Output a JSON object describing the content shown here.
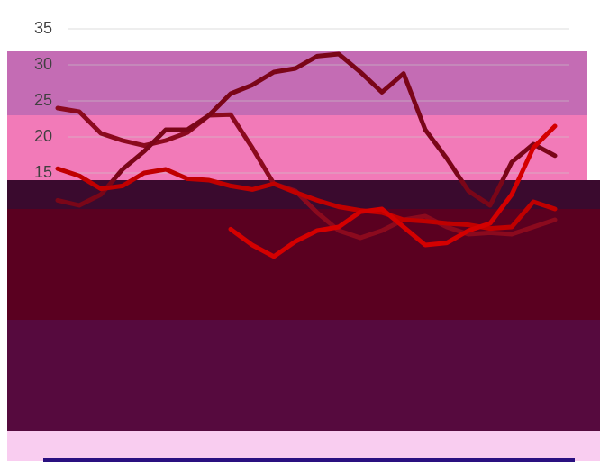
{
  "chart_data": {
    "type": "line",
    "x": [
      0,
      1,
      2,
      3,
      4,
      5,
      6,
      7,
      8,
      9,
      10,
      11,
      12,
      13,
      14,
      15,
      16,
      17,
      18,
      19,
      20,
      21,
      22,
      23
    ],
    "xlim": [
      0,
      23
    ],
    "ylim": [
      0,
      35
    ],
    "yticks": [
      15,
      20,
      25,
      30,
      35
    ],
    "grid": true,
    "series": [
      {
        "color": "#8b0a1e",
        "values": [
          24,
          23.5,
          20.5,
          19.5,
          18.8,
          19.5,
          20.6,
          23,
          23.1,
          18.5,
          13.5,
          12.5,
          9.5,
          7,
          6,
          7,
          8.5,
          9,
          7.5,
          6.5,
          6.7,
          6.5,
          7.5,
          8.5
        ]
      },
      {
        "color": "#7a0618",
        "values": [
          11.2,
          10.5,
          12,
          15.5,
          18,
          21,
          21,
          23,
          26,
          27.2,
          29,
          29.5,
          31.2,
          31.5,
          29,
          26.2,
          28.8,
          21,
          17,
          12.5,
          10.5,
          16.5,
          19,
          17.4
        ]
      },
      {
        "color": "#c00000",
        "values": [
          15.6,
          14.6,
          12.8,
          13.2,
          15,
          15.5,
          14.2,
          14,
          13.2,
          12.7,
          13.5,
          12.3,
          11.2,
          10.3,
          9.8,
          9.5,
          8.5,
          8.3,
          8,
          7.8,
          7.3,
          7.5,
          11,
          10
        ]
      },
      {
        "color": "#d40000",
        "values": [
          null,
          null,
          null,
          null,
          null,
          null,
          null,
          null,
          7.2,
          5,
          3.4,
          5.5,
          7,
          7.5,
          9.6,
          10,
          7.5,
          5,
          5.3,
          7,
          8,
          12,
          18.5,
          21.5
        ]
      }
    ]
  }
}
